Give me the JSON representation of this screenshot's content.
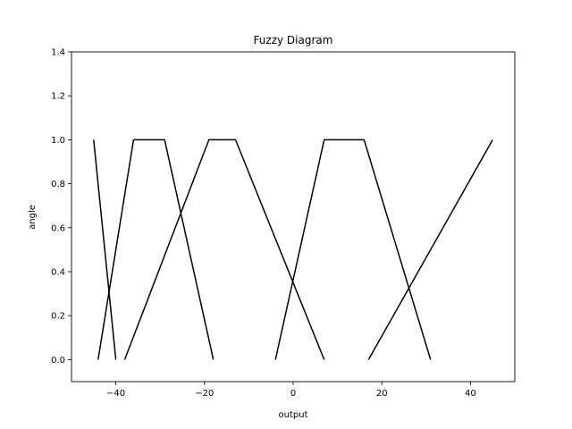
{
  "chart_data": {
    "type": "line",
    "title": "Fuzzy Diagram",
    "xlabel": "output",
    "ylabel": "angle",
    "xlim": [
      -50,
      50
    ],
    "ylim": [
      -0.1,
      1.4
    ],
    "xticks": [
      -40,
      -20,
      0,
      20,
      40
    ],
    "xtick_labels": [
      "−40",
      "−20",
      "0",
      "20",
      "40"
    ],
    "yticks": [
      0.0,
      0.2,
      0.4,
      0.6,
      0.8,
      1.0,
      1.2,
      1.4
    ],
    "ytick_labels": [
      "0.0",
      "0.2",
      "0.4",
      "0.6",
      "0.8",
      "1.0",
      "1.2",
      "1.4"
    ],
    "grid": false,
    "line_color": "#000000",
    "series": [
      {
        "x": [
          -45,
          -40
        ],
        "y": [
          1,
          0
        ]
      },
      {
        "x": [
          -44,
          -36,
          -29,
          -18
        ],
        "y": [
          0,
          1,
          1,
          0
        ]
      },
      {
        "x": [
          -38,
          -19,
          -13,
          7
        ],
        "y": [
          0,
          1,
          1,
          0
        ]
      },
      {
        "x": [
          -4,
          7,
          16,
          31
        ],
        "y": [
          0,
          1,
          1,
          0
        ]
      },
      {
        "x": [
          17,
          45
        ],
        "y": [
          0,
          1
        ]
      }
    ]
  }
}
